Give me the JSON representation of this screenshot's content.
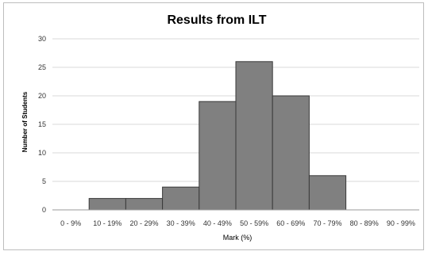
{
  "chart_data": {
    "type": "bar",
    "title": "Results from ILT",
    "xlabel": "Mark (%)",
    "ylabel": "Number of Students",
    "categories": [
      "0 - 9%",
      "10 - 19%",
      "20 - 29%",
      "30 - 39%",
      "40 - 49%",
      "50 - 59%",
      "60 - 69%",
      "70 - 79%",
      "80 - 89%",
      "90 - 99%"
    ],
    "values": [
      0,
      2,
      2,
      4,
      19,
      26,
      20,
      6,
      0,
      0
    ],
    "ylim": [
      0,
      30
    ],
    "yticks": [
      0,
      5,
      10,
      15,
      20,
      25,
      30
    ],
    "grid": true,
    "bar_color": "#808080",
    "bar_edge_color": "#3a3a3a",
    "grid_color": "#d9d9d9"
  }
}
